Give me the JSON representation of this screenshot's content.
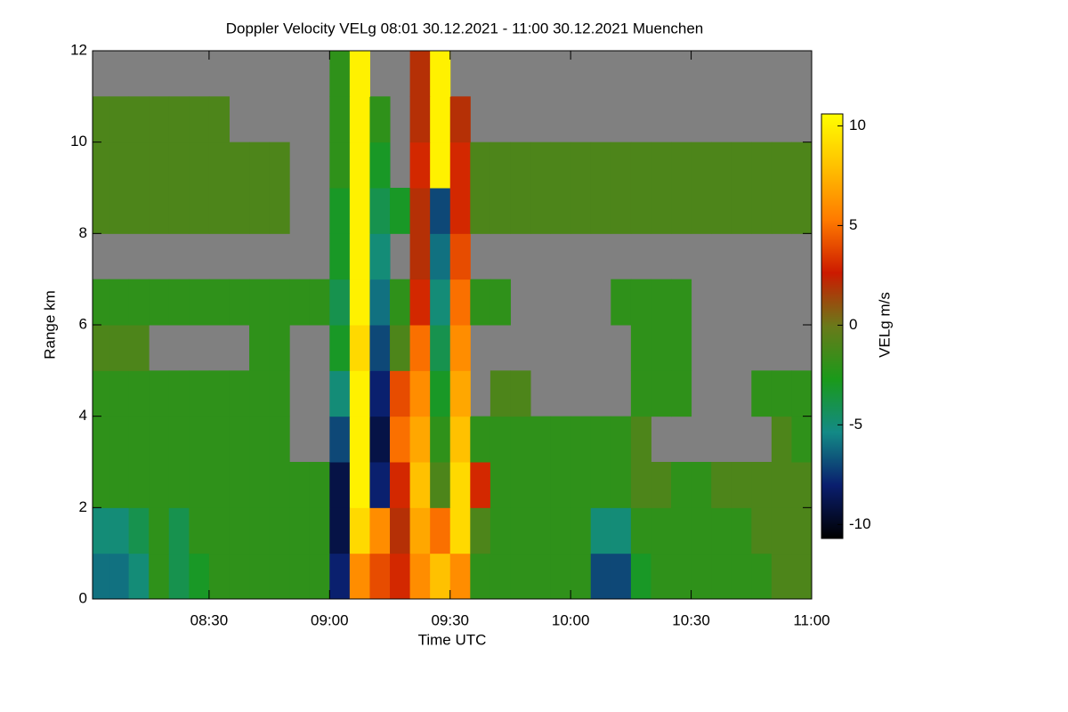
{
  "chart_data": {
    "type": "heatmap",
    "title": "Doppler Velocity VELg   08:01 30.12.2021 - 11:00 30.12.2021 Muenchen",
    "x_label": "Time UTC",
    "y_label": "Range km",
    "colorbar_label": "VELg m/s",
    "x": [
      "08:01",
      "08:05",
      "08:10",
      "08:15",
      "08:20",
      "08:25",
      "08:30",
      "08:35",
      "08:40",
      "08:45",
      "08:50",
      "08:55",
      "09:00",
      "09:05",
      "09:10",
      "09:15",
      "09:20",
      "09:25",
      "09:30",
      "09:35",
      "09:40",
      "09:45",
      "09:50",
      "09:55",
      "10:00",
      "10:05",
      "10:10",
      "10:15",
      "10:20",
      "10:25",
      "10:30",
      "10:35",
      "10:40",
      "10:45",
      "10:50",
      "10:55",
      "11:00"
    ],
    "y": [
      0,
      1,
      2,
      3,
      4,
      5,
      6,
      7,
      8,
      9,
      10,
      11,
      12
    ],
    "xlim": [
      "08:01",
      "11:00"
    ],
    "xticks": [
      "08:30",
      "09:00",
      "09:30",
      "10:00",
      "10:30",
      "11:00"
    ],
    "ylim": [
      0,
      12
    ],
    "yticks": [
      0,
      2,
      4,
      6,
      8,
      10,
      12
    ],
    "zlim": [
      -10.7,
      10.6
    ],
    "zticks": [
      -10,
      -5,
      0,
      5,
      10
    ],
    "colorscale": [
      "#000000",
      "#0a1e6e",
      "#138a86",
      "#1a9a1a",
      "#6a7a1a",
      "#cc1a00",
      "#ff7a00",
      "#ffc000",
      "#ffff00"
    ],
    "missing_color": "#808080",
    "values": [
      [
        -6,
        -6,
        -5,
        -2,
        -4,
        -3,
        -2,
        -2,
        -2,
        -2,
        -2,
        -2,
        -8,
        6,
        4,
        3,
        6,
        8,
        6,
        -2,
        -2,
        -2,
        -2,
        -2,
        -2,
        -7,
        -7,
        -3,
        -2,
        -2,
        -2,
        -2,
        -2,
        -2,
        -1,
        -1
      ],
      [
        -5,
        -5,
        -4,
        -2,
        -4,
        -2,
        -2,
        -2,
        -2,
        -2,
        -2,
        -2,
        -9,
        9,
        6,
        2,
        7,
        5,
        9,
        -1,
        -2,
        -2,
        -2,
        -2,
        -2,
        -5,
        -5,
        -2,
        -2,
        -2,
        -2,
        -2,
        -2,
        -1,
        -1,
        -1
      ],
      [
        -2,
        -2,
        -2,
        -2,
        -2,
        -2,
        -2,
        -2,
        -2,
        -2,
        -2,
        -2,
        -9,
        10,
        -8,
        3,
        8,
        -1,
        9,
        3,
        -2,
        -2,
        -2,
        -2,
        -2,
        -2,
        -2,
        -1,
        -1,
        -2,
        -2,
        -1,
        -1,
        -1,
        -1,
        -1
      ],
      [
        -2,
        -2,
        -2,
        -2,
        -2,
        -2,
        -2,
        -2,
        -2,
        -2,
        null,
        null,
        -7,
        10,
        -9,
        5,
        7,
        -2,
        8,
        -2,
        -2,
        -2,
        -2,
        -2,
        -2,
        -2,
        -2,
        -1,
        null,
        null,
        null,
        null,
        null,
        null,
        -1,
        -2
      ],
      [
        -2,
        -2,
        -2,
        -2,
        -2,
        -2,
        -2,
        -2,
        -2,
        -2,
        null,
        null,
        -5,
        10,
        -8,
        4,
        6,
        -3,
        7,
        null,
        -1,
        -1,
        null,
        null,
        null,
        null,
        null,
        -2,
        -2,
        -2,
        null,
        null,
        null,
        -2,
        -2,
        -2
      ],
      [
        -1,
        -1,
        -1,
        null,
        null,
        null,
        null,
        null,
        -2,
        -2,
        null,
        null,
        -3,
        9,
        -7,
        -1,
        5,
        -4,
        6,
        null,
        null,
        null,
        null,
        null,
        null,
        null,
        null,
        -2,
        -2,
        -2,
        null,
        null,
        null,
        null,
        null,
        null
      ],
      [
        -2,
        -2,
        -2,
        -2,
        -2,
        -2,
        -2,
        -2,
        -2,
        -2,
        -2,
        -2,
        -4,
        10,
        -6,
        -2,
        3,
        -5,
        5,
        -2,
        -2,
        null,
        null,
        null,
        null,
        null,
        -2,
        -2,
        -2,
        -2,
        null,
        null,
        null,
        null,
        null,
        null
      ],
      [
        null,
        null,
        null,
        null,
        null,
        null,
        null,
        null,
        null,
        null,
        null,
        null,
        -3,
        10,
        -5,
        null,
        2,
        -6,
        4,
        null,
        null,
        null,
        null,
        null,
        null,
        null,
        null,
        null,
        null,
        null,
        null,
        null,
        null,
        null,
        null,
        null
      ],
      [
        -1,
        -1,
        -1,
        -1,
        -1,
        -1,
        -1,
        -1,
        -1,
        -1,
        null,
        null,
        -3,
        10,
        -4,
        -3,
        2,
        -7,
        3,
        -1,
        -1,
        -1,
        -1,
        -1,
        -1,
        -1,
        -1,
        -1,
        -1,
        -1,
        -1,
        -1,
        -1,
        -1,
        -1,
        -1
      ],
      [
        -1,
        -1,
        -1,
        -1,
        -1,
        -1,
        -1,
        -1,
        -1,
        -1,
        null,
        null,
        -2,
        10,
        -3,
        null,
        3,
        10,
        3,
        -1,
        -1,
        -1,
        -1,
        -1,
        -1,
        -1,
        -1,
        -1,
        -1,
        -1,
        -1,
        -1,
        -1,
        -1,
        -1,
        -1
      ],
      [
        -1,
        -1,
        -1,
        -1,
        -1,
        -1,
        -1,
        null,
        null,
        null,
        null,
        null,
        -2,
        10,
        -2,
        null,
        2,
        10,
        2,
        null,
        null,
        null,
        null,
        null,
        null,
        null,
        null,
        null,
        null,
        null,
        null,
        null,
        null,
        null,
        null,
        null
      ],
      [
        null,
        null,
        null,
        null,
        null,
        null,
        null,
        null,
        null,
        null,
        null,
        null,
        -2,
        10,
        null,
        null,
        2,
        10,
        null,
        null,
        null,
        null,
        null,
        null,
        null,
        null,
        null,
        null,
        null,
        null,
        null,
        null,
        null,
        null,
        null,
        null
      ]
    ]
  }
}
